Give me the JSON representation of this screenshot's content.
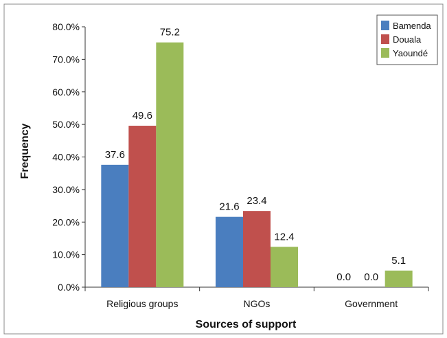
{
  "chart_data": {
    "type": "bar",
    "title": "",
    "xlabel": "Sources of support",
    "ylabel": "Frequency",
    "categories": [
      "Religious groups",
      "NGOs",
      "Government"
    ],
    "series": [
      {
        "name": "Bamenda",
        "color": "#4a7ebf",
        "values": [
          37.6,
          21.6,
          0.0
        ],
        "labels": [
          "37.6",
          "21.6",
          "0.0"
        ]
      },
      {
        "name": "Douala",
        "color": "#c0504d",
        "values": [
          49.6,
          23.4,
          0.0
        ],
        "labels": [
          "49.6",
          "23.4",
          "0.0"
        ]
      },
      {
        "name": "Yaoundé",
        "color": "#9bbb59",
        "values": [
          75.2,
          12.4,
          5.1
        ],
        "labels": [
          "75.2",
          "12.4",
          "5.1"
        ]
      }
    ],
    "ylim": [
      0,
      80
    ],
    "yticks": [
      0,
      10,
      20,
      30,
      40,
      50,
      60,
      70,
      80
    ],
    "ytick_labels": [
      "0.0%",
      "10.0%",
      "20.0%",
      "30.0%",
      "40.0%",
      "50.0%",
      "60.0%",
      "70.0%",
      "80.0%"
    ],
    "grid": false,
    "legend_position": "top-right"
  }
}
